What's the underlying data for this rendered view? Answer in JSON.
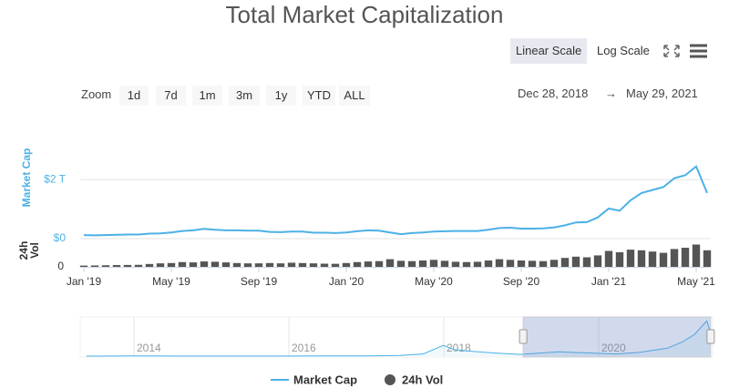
{
  "title": "Total Market Capitalization",
  "controls": {
    "scale_buttons": [
      "Linear Scale",
      "Log Scale"
    ],
    "zoom_label": "Zoom",
    "zoom_buttons": [
      "1d",
      "7d",
      "1m",
      "3m",
      "1y",
      "YTD",
      "ALL"
    ],
    "date_from": "Dec 28, 2018",
    "date_arrow": "→",
    "date_to": "May 29, 2021"
  },
  "chart_data": {
    "type": "line",
    "ylabel": "Market Cap",
    "y2label": "24h Vol",
    "categories": [
      "Jan '19",
      null,
      null,
      null,
      null,
      null,
      null,
      null,
      "May '19",
      null,
      null,
      null,
      null,
      null,
      null,
      null,
      "Sep '19",
      null,
      null,
      null,
      null,
      null,
      null,
      null,
      "Jan '20",
      null,
      null,
      null,
      null,
      null,
      null,
      null,
      "May '20",
      null,
      null,
      null,
      null,
      null,
      null,
      null,
      "Sep '20",
      null,
      null,
      null,
      null,
      null,
      null,
      null,
      "Jan '21",
      null,
      null,
      null,
      null,
      null,
      null,
      null,
      "May '21",
      null
    ],
    "ylim": [
      0,
      3.4
    ],
    "yticks": [
      {
        "value": 0,
        "label": "$0"
      },
      {
        "value": 2,
        "label": "$2 T"
      }
    ],
    "y2lim": [
      0,
      400
    ],
    "y2ticks": [
      0
    ],
    "grid": true,
    "series": [
      {
        "name": "Market Cap",
        "type": "line",
        "color": "#4cb1e6",
        "values": [
          0.12,
          0.11,
          0.12,
          0.13,
          0.14,
          0.14,
          0.17,
          0.18,
          0.21,
          0.26,
          0.28,
          0.33,
          0.3,
          0.28,
          0.28,
          0.27,
          0.27,
          0.23,
          0.22,
          0.24,
          0.24,
          0.2,
          0.2,
          0.19,
          0.21,
          0.25,
          0.28,
          0.27,
          0.21,
          0.15,
          0.19,
          0.21,
          0.24,
          0.25,
          0.26,
          0.26,
          0.26,
          0.3,
          0.36,
          0.37,
          0.34,
          0.34,
          0.35,
          0.38,
          0.45,
          0.55,
          0.56,
          0.72,
          1.02,
          0.95,
          1.3,
          1.55,
          1.65,
          1.75,
          2.05,
          2.15,
          2.45,
          1.55
        ]
      },
      {
        "name": "24h Vol",
        "type": "bar",
        "axis": "y2",
        "color": "#555555",
        "values": [
          20,
          22,
          25,
          28,
          30,
          32,
          45,
          55,
          60,
          75,
          70,
          85,
          80,
          70,
          60,
          55,
          55,
          60,
          55,
          65,
          60,
          55,
          50,
          48,
          60,
          75,
          85,
          90,
          120,
          95,
          90,
          100,
          110,
          95,
          80,
          75,
          80,
          100,
          120,
          110,
          100,
          95,
          90,
          110,
          140,
          160,
          150,
          180,
          250,
          230,
          270,
          260,
          240,
          220,
          280,
          300,
          350,
          260
        ]
      }
    ],
    "navigator": {
      "xlim": [
        2013.3,
        2021.45
      ],
      "xticks": [
        2014,
        2016,
        2018,
        2020
      ],
      "ylim": [
        0,
        2.6
      ],
      "x": [
        2013.35,
        2013.9,
        2014.5,
        2015,
        2015.5,
        2016,
        2016.5,
        2017,
        2017.4,
        2017.7,
        2017.96,
        2018.1,
        2018.3,
        2018.6,
        2018.95,
        2019.45,
        2019.9,
        2020.2,
        2020.5,
        2020.85,
        2021.05,
        2021.2,
        2021.36,
        2021.41
      ],
      "values": [
        0.002,
        0.01,
        0.008,
        0.004,
        0.004,
        0.007,
        0.01,
        0.018,
        0.05,
        0.15,
        0.75,
        0.45,
        0.35,
        0.22,
        0.12,
        0.3,
        0.2,
        0.15,
        0.27,
        0.55,
        1.0,
        1.5,
        2.45,
        1.6
      ],
      "selection": [
        2018.99,
        2021.41
      ]
    }
  }
}
